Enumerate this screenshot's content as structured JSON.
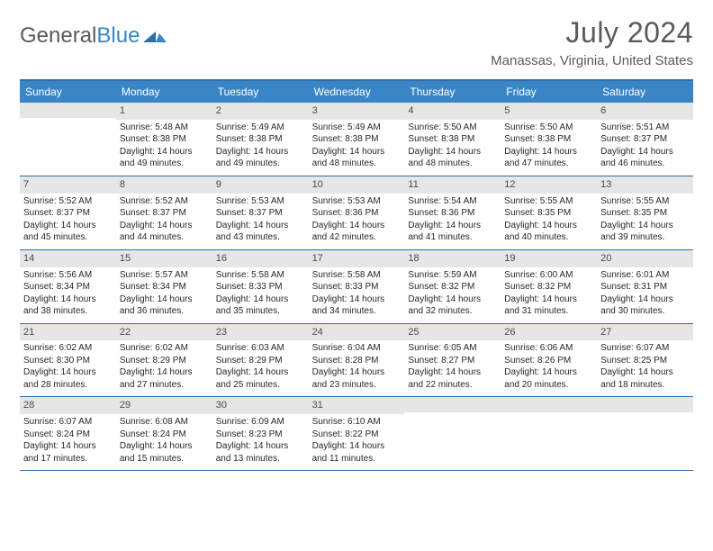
{
  "logo": {
    "general": "General",
    "blue": "Blue"
  },
  "title": "July 2024",
  "location": "Manassas, Virginia, United States",
  "colors": {
    "header_bg": "#3a85c6",
    "rule": "#2f6ea8",
    "strip": "#e6e6e6",
    "text": "#333333",
    "title_text": "#5a5a5a"
  },
  "weekdays": [
    "Sunday",
    "Monday",
    "Tuesday",
    "Wednesday",
    "Thursday",
    "Friday",
    "Saturday"
  ],
  "weeks": [
    [
      null,
      {
        "n": "1",
        "sr": "5:48 AM",
        "ss": "8:38 PM",
        "d1": "14 hours",
        "d2": "49 minutes."
      },
      {
        "n": "2",
        "sr": "5:49 AM",
        "ss": "8:38 PM",
        "d1": "14 hours",
        "d2": "49 minutes."
      },
      {
        "n": "3",
        "sr": "5:49 AM",
        "ss": "8:38 PM",
        "d1": "14 hours",
        "d2": "48 minutes."
      },
      {
        "n": "4",
        "sr": "5:50 AM",
        "ss": "8:38 PM",
        "d1": "14 hours",
        "d2": "48 minutes."
      },
      {
        "n": "5",
        "sr": "5:50 AM",
        "ss": "8:38 PM",
        "d1": "14 hours",
        "d2": "47 minutes."
      },
      {
        "n": "6",
        "sr": "5:51 AM",
        "ss": "8:37 PM",
        "d1": "14 hours",
        "d2": "46 minutes."
      }
    ],
    [
      {
        "n": "7",
        "sr": "5:52 AM",
        "ss": "8:37 PM",
        "d1": "14 hours",
        "d2": "45 minutes."
      },
      {
        "n": "8",
        "sr": "5:52 AM",
        "ss": "8:37 PM",
        "d1": "14 hours",
        "d2": "44 minutes."
      },
      {
        "n": "9",
        "sr": "5:53 AM",
        "ss": "8:37 PM",
        "d1": "14 hours",
        "d2": "43 minutes."
      },
      {
        "n": "10",
        "sr": "5:53 AM",
        "ss": "8:36 PM",
        "d1": "14 hours",
        "d2": "42 minutes."
      },
      {
        "n": "11",
        "sr": "5:54 AM",
        "ss": "8:36 PM",
        "d1": "14 hours",
        "d2": "41 minutes."
      },
      {
        "n": "12",
        "sr": "5:55 AM",
        "ss": "8:35 PM",
        "d1": "14 hours",
        "d2": "40 minutes."
      },
      {
        "n": "13",
        "sr": "5:55 AM",
        "ss": "8:35 PM",
        "d1": "14 hours",
        "d2": "39 minutes."
      }
    ],
    [
      {
        "n": "14",
        "sr": "5:56 AM",
        "ss": "8:34 PM",
        "d1": "14 hours",
        "d2": "38 minutes."
      },
      {
        "n": "15",
        "sr": "5:57 AM",
        "ss": "8:34 PM",
        "d1": "14 hours",
        "d2": "36 minutes."
      },
      {
        "n": "16",
        "sr": "5:58 AM",
        "ss": "8:33 PM",
        "d1": "14 hours",
        "d2": "35 minutes."
      },
      {
        "n": "17",
        "sr": "5:58 AM",
        "ss": "8:33 PM",
        "d1": "14 hours",
        "d2": "34 minutes."
      },
      {
        "n": "18",
        "sr": "5:59 AM",
        "ss": "8:32 PM",
        "d1": "14 hours",
        "d2": "32 minutes."
      },
      {
        "n": "19",
        "sr": "6:00 AM",
        "ss": "8:32 PM",
        "d1": "14 hours",
        "d2": "31 minutes."
      },
      {
        "n": "20",
        "sr": "6:01 AM",
        "ss": "8:31 PM",
        "d1": "14 hours",
        "d2": "30 minutes."
      }
    ],
    [
      {
        "n": "21",
        "sr": "6:02 AM",
        "ss": "8:30 PM",
        "d1": "14 hours",
        "d2": "28 minutes."
      },
      {
        "n": "22",
        "sr": "6:02 AM",
        "ss": "8:29 PM",
        "d1": "14 hours",
        "d2": "27 minutes."
      },
      {
        "n": "23",
        "sr": "6:03 AM",
        "ss": "8:29 PM",
        "d1": "14 hours",
        "d2": "25 minutes."
      },
      {
        "n": "24",
        "sr": "6:04 AM",
        "ss": "8:28 PM",
        "d1": "14 hours",
        "d2": "23 minutes."
      },
      {
        "n": "25",
        "sr": "6:05 AM",
        "ss": "8:27 PM",
        "d1": "14 hours",
        "d2": "22 minutes."
      },
      {
        "n": "26",
        "sr": "6:06 AM",
        "ss": "8:26 PM",
        "d1": "14 hours",
        "d2": "20 minutes."
      },
      {
        "n": "27",
        "sr": "6:07 AM",
        "ss": "8:25 PM",
        "d1": "14 hours",
        "d2": "18 minutes."
      }
    ],
    [
      {
        "n": "28",
        "sr": "6:07 AM",
        "ss": "8:24 PM",
        "d1": "14 hours",
        "d2": "17 minutes."
      },
      {
        "n": "29",
        "sr": "6:08 AM",
        "ss": "8:24 PM",
        "d1": "14 hours",
        "d2": "15 minutes."
      },
      {
        "n": "30",
        "sr": "6:09 AM",
        "ss": "8:23 PM",
        "d1": "14 hours",
        "d2": "13 minutes."
      },
      {
        "n": "31",
        "sr": "6:10 AM",
        "ss": "8:22 PM",
        "d1": "14 hours",
        "d2": "11 minutes."
      },
      null,
      null,
      null
    ]
  ],
  "labels": {
    "sunrise": "Sunrise:",
    "sunset": "Sunset:",
    "daylight": "Daylight:",
    "and": "and"
  }
}
